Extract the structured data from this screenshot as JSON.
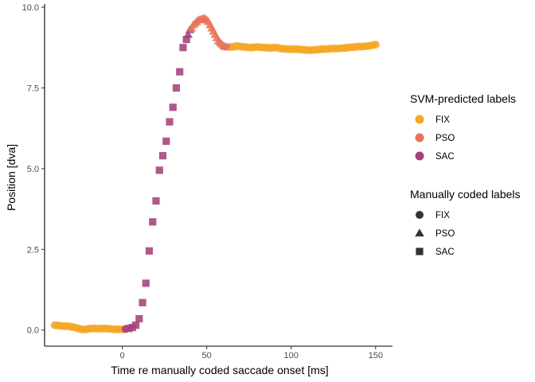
{
  "chart_data": {
    "type": "scatter",
    "title": "",
    "xlabel": "Time re manually coded saccade onset [ms]",
    "ylabel": "Position [dva]",
    "xlim": [
      -46,
      160
    ],
    "ylim": [
      -0.5,
      10.1
    ],
    "x_ticks": [
      0,
      50,
      100,
      150
    ],
    "y_ticks": [
      0.0,
      2.5,
      5.0,
      7.5,
      10.0
    ],
    "x_tick_labels": [
      "0",
      "50",
      "100",
      "150"
    ],
    "y_tick_labels": [
      "0.0",
      "2.5",
      "5.0",
      "7.5",
      "10.0"
    ],
    "grid": false,
    "legend_position": "right",
    "colors": {
      "FIX": "#F5A623",
      "PSO": "#E8735A",
      "SAC": "#A3427A"
    },
    "legends": [
      {
        "title": "SVM-predicted labels",
        "type": "color",
        "items": [
          "FIX",
          "PSO",
          "SAC"
        ]
      },
      {
        "title": "Manually coded labels",
        "type": "shape",
        "items": [
          "FIX",
          "PSO",
          "SAC"
        ],
        "shapes": [
          "circle",
          "triangle",
          "square"
        ]
      }
    ],
    "series": [
      {
        "predicted": "FIX",
        "manual": "FIX",
        "points": [
          [
            -40,
            0.15
          ],
          [
            -38,
            0.14
          ],
          [
            -36,
            0.13
          ],
          [
            -34,
            0.12
          ],
          [
            -32,
            0.12
          ],
          [
            -30,
            0.1
          ],
          [
            -28,
            0.08
          ],
          [
            -26,
            0.05
          ],
          [
            -24,
            0.02
          ],
          [
            -22,
            0.02
          ],
          [
            -20,
            0.04
          ],
          [
            -18,
            0.05
          ],
          [
            -16,
            0.05
          ],
          [
            -14,
            0.04
          ],
          [
            -12,
            0.05
          ],
          [
            -10,
            0.05
          ],
          [
            -8,
            0.04
          ],
          [
            -6,
            0.03
          ],
          [
            -4,
            0.02
          ],
          [
            -2,
            0.02
          ],
          [
            0,
            0.02
          ]
        ]
      },
      {
        "predicted": "SAC",
        "manual": "FIX",
        "points": [
          [
            2,
            0.03
          ]
        ]
      },
      {
        "predicted": "SAC",
        "manual": "SAC",
        "points": [
          [
            4,
            0.05
          ],
          [
            6,
            0.08
          ],
          [
            8,
            0.15
          ],
          [
            10,
            0.35
          ],
          [
            12,
            0.85
          ],
          [
            14,
            1.45
          ],
          [
            16,
            2.45
          ],
          [
            18,
            3.35
          ],
          [
            20,
            4.0
          ],
          [
            22,
            4.95
          ],
          [
            24,
            5.4
          ],
          [
            26,
            5.85
          ],
          [
            28,
            6.45
          ],
          [
            30,
            6.9
          ],
          [
            32,
            7.5
          ],
          [
            34,
            8.0
          ],
          [
            36,
            8.75
          ],
          [
            38,
            9.0
          ]
        ]
      },
      {
        "predicted": "SAC",
        "manual": "PSO",
        "points": [
          [
            39,
            9.15
          ],
          [
            40,
            9.3
          ]
        ]
      },
      {
        "predicted": "PSO",
        "manual": "PSO",
        "points": [
          [
            41,
            9.35
          ],
          [
            42,
            9.45
          ],
          [
            43,
            9.5
          ],
          [
            44,
            9.55
          ],
          [
            45,
            9.6
          ],
          [
            46,
            9.62
          ],
          [
            47,
            9.63
          ],
          [
            48,
            9.65
          ],
          [
            49,
            9.65
          ],
          [
            50,
            9.6
          ],
          [
            51,
            9.55
          ],
          [
            52,
            9.45
          ],
          [
            53,
            9.35
          ],
          [
            54,
            9.25
          ],
          [
            55,
            9.15
          ],
          [
            56,
            9.05
          ],
          [
            57,
            8.95
          ],
          [
            58,
            8.9
          ],
          [
            59,
            8.85
          ],
          [
            60,
            8.8
          ],
          [
            61,
            8.78
          ],
          [
            62,
            8.77
          ],
          [
            63,
            8.76
          ],
          [
            64,
            8.76
          ]
        ]
      },
      {
        "predicted": "FIX",
        "manual": "PSO",
        "points": [
          [
            65,
            8.77
          ],
          [
            66,
            8.78
          ]
        ]
      },
      {
        "predicted": "FIX",
        "manual": "FIX",
        "points": [
          [
            68,
            8.8
          ],
          [
            70,
            8.78
          ],
          [
            72,
            8.77
          ],
          [
            74,
            8.76
          ],
          [
            76,
            8.75
          ],
          [
            78,
            8.76
          ],
          [
            80,
            8.77
          ],
          [
            82,
            8.76
          ],
          [
            84,
            8.75
          ],
          [
            86,
            8.74
          ],
          [
            88,
            8.74
          ],
          [
            90,
            8.75
          ],
          [
            92,
            8.74
          ],
          [
            94,
            8.72
          ],
          [
            96,
            8.71
          ],
          [
            98,
            8.7
          ],
          [
            100,
            8.7
          ],
          [
            102,
            8.7
          ],
          [
            104,
            8.7
          ],
          [
            106,
            8.69
          ],
          [
            108,
            8.68
          ],
          [
            110,
            8.67
          ],
          [
            112,
            8.67
          ],
          [
            114,
            8.68
          ],
          [
            116,
            8.69
          ],
          [
            118,
            8.7
          ],
          [
            120,
            8.7
          ],
          [
            122,
            8.71
          ],
          [
            124,
            8.72
          ],
          [
            126,
            8.72
          ],
          [
            128,
            8.72
          ],
          [
            130,
            8.73
          ],
          [
            132,
            8.74
          ],
          [
            134,
            8.75
          ],
          [
            136,
            8.76
          ],
          [
            138,
            8.77
          ],
          [
            140,
            8.78
          ],
          [
            142,
            8.78
          ],
          [
            144,
            8.79
          ],
          [
            146,
            8.8
          ],
          [
            148,
            8.82
          ],
          [
            150,
            8.84
          ]
        ]
      }
    ]
  }
}
